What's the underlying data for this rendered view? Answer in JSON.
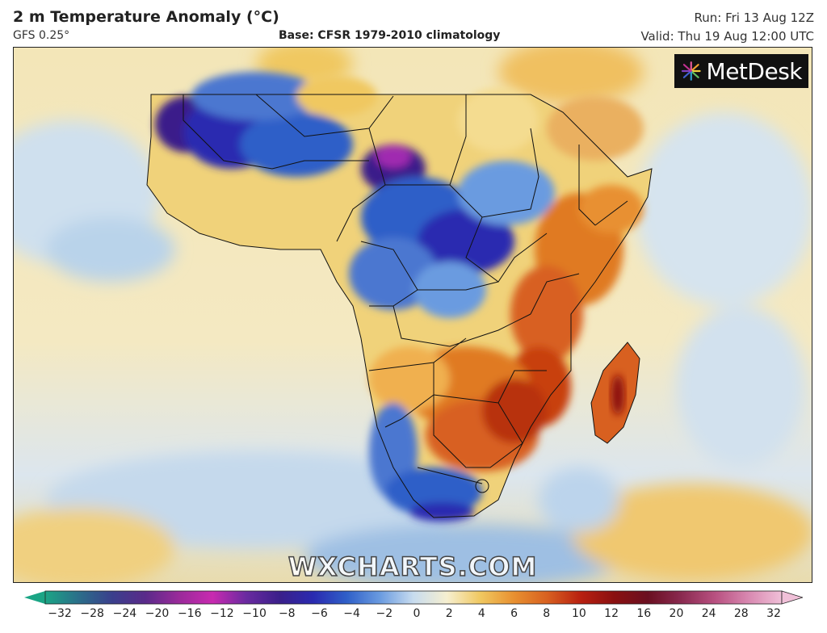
{
  "header": {
    "title": "2 m Temperature Anomaly (°C)",
    "model": "GFS 0.25°",
    "base": "Base: CFSR 1979-2010 climatology",
    "run": "Run: Fri 13 Aug 12Z",
    "valid": "Valid: Thu 19 Aug 12:00 UTC"
  },
  "logo": {
    "text": "MetDesk",
    "icon": "metdesk-logo-icon"
  },
  "watermark": "WXCHARTS.COM",
  "legend": {
    "ticks": [
      "−32",
      "−28",
      "−24",
      "−20",
      "−16",
      "−12",
      "−10",
      "−8",
      "−6",
      "−4",
      "−2",
      "0",
      "2",
      "4",
      "6",
      "8",
      "10",
      "12",
      "16",
      "20",
      "24",
      "28",
      "32"
    ],
    "colors": [
      "#1aa585",
      "#2b6e8a",
      "#3a3f8c",
      "#5a2a8a",
      "#9a2a9a",
      "#c82ab0",
      "#6a2aa0",
      "#3a1f8a",
      "#2a2ab0",
      "#2f5fc8",
      "#6a9be0",
      "#c8dcef",
      "#f6efd0",
      "#f0c860",
      "#e89030",
      "#d86020",
      "#b82010",
      "#8a1010",
      "#6a0f20",
      "#8a2a50",
      "#b85080",
      "#d888b0",
      "#f0c0d8"
    ]
  },
  "chart_data": {
    "type": "heatmap",
    "title": "2 m Temperature Anomaly (°C)",
    "units": "°C",
    "colorbar_range": [
      -32,
      32
    ],
    "colorbar_ticks": [
      -32,
      -28,
      -24,
      -20,
      -16,
      -12,
      -10,
      -8,
      -6,
      -4,
      -2,
      0,
      2,
      4,
      6,
      8,
      10,
      12,
      16,
      20,
      24,
      28,
      32
    ]
  },
  "colors": {
    "ocean_warm": "#efe3b5",
    "cold_blue": "#2f5fc8",
    "deep_cold": "#3a1f8a",
    "warm_orange": "#e89030",
    "hot_red": "#c84010"
  }
}
